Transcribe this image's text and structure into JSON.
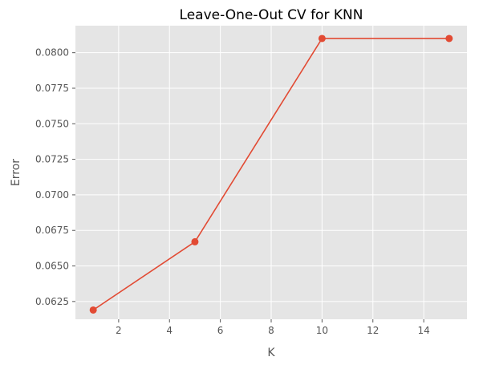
{
  "chart_data": {
    "type": "line",
    "title": "Leave-One-Out CV for KNN",
    "xlabel": "K",
    "ylabel": "Error",
    "x": [
      1,
      5,
      10,
      15
    ],
    "series": [
      {
        "values": [
          0.0619,
          0.0667,
          0.081,
          0.081
        ]
      }
    ],
    "xlim": [
      0.3,
      15.7
    ],
    "ylim": [
      0.06125,
      0.0819
    ],
    "xticks": [
      2,
      4,
      6,
      8,
      10,
      12,
      14
    ],
    "xtick_labels": [
      "2",
      "4",
      "6",
      "8",
      "10",
      "12",
      "14"
    ],
    "yticks": [
      0.0625,
      0.065,
      0.0675,
      0.07,
      0.0725,
      0.075,
      0.0775,
      0.08
    ],
    "ytick_labels": [
      "0.0625",
      "0.0650",
      "0.0675",
      "0.0700",
      "0.0725",
      "0.0750",
      "0.0775",
      "0.0800"
    ],
    "grid": true,
    "style": "ggplot",
    "colors": {
      "background": "#E5E5E5",
      "grid": "#FFFFFF",
      "series": "#E24A33",
      "tick": "#555555"
    }
  }
}
